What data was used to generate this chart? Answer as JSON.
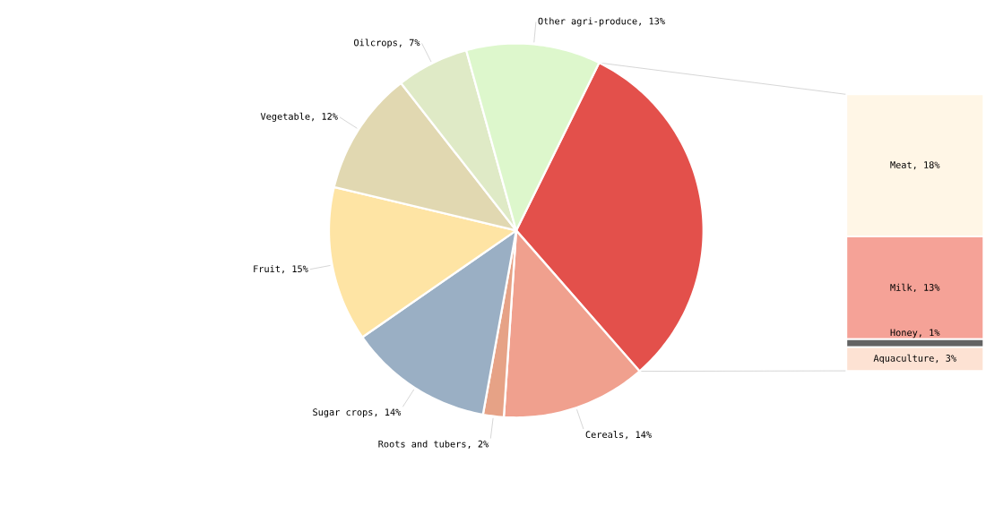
{
  "chart_data": [
    {
      "type": "pie",
      "categories": [
        null,
        "Cereals, 14%",
        "Roots and tubers, 2%",
        "Sugar crops, 14%",
        "Fruit, 15%",
        "Vegetable, 12%",
        "Oilcrops, 7%",
        "Other agri-produce, 13%"
      ],
      "values": [
        35,
        14,
        2,
        14,
        15,
        12,
        7,
        13
      ],
      "colors": [
        "#e3504b",
        "#f0a08e",
        "#e6a286",
        "#9aafc4",
        "#fee4a4",
        "#e1d8b1",
        "#dfeac6",
        "#ddf7cc"
      ]
    },
    {
      "type": "bar",
      "stacked": true,
      "categories": [
        null
      ],
      "series": [
        {
          "color": "#fde2d3",
          "values": [
            3
          ],
          "value_labels": [
            "Aquaculture, 3%"
          ]
        },
        {
          "color": "#636363",
          "values": [
            1
          ],
          "value_labels": [
            "Honey, 1%"
          ]
        },
        {
          "color": "#f5a297",
          "values": [
            13
          ],
          "value_labels": [
            "Milk, 13%"
          ]
        },
        {
          "color": "#fff6e6",
          "values": [
            18
          ],
          "value_labels": [
            "Meat, 18%"
          ]
        }
      ]
    }
  ]
}
